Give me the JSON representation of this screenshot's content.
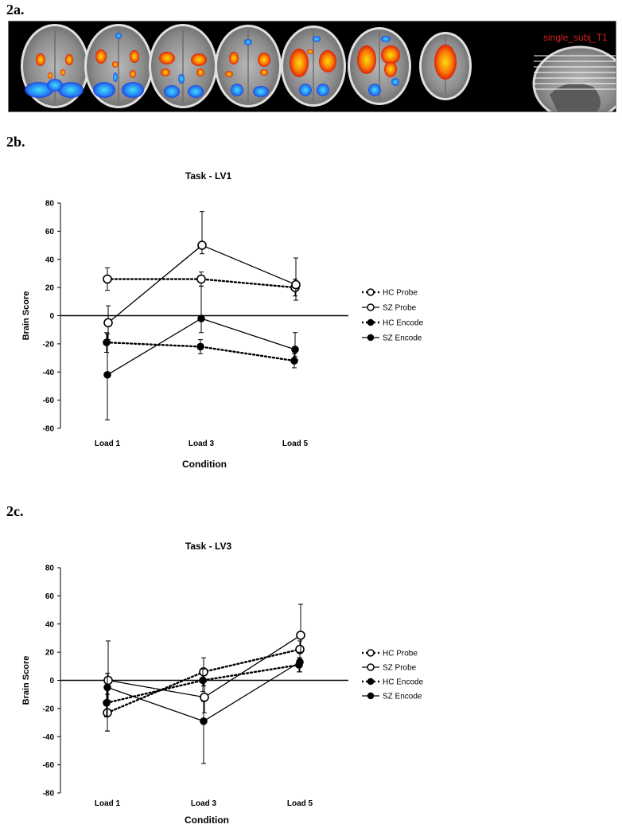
{
  "panels": {
    "a_label": "2a.",
    "b_label": "2b.",
    "c_label": "2c."
  },
  "brain_strip": {
    "overlay_label": "single_subj_T1",
    "colors": {
      "positive": "#ff3b00",
      "positive_peak": "#ffe000",
      "negative": "#1e5bff",
      "negative_peak": "#39e6ff",
      "background": "#000000",
      "label": "#d02020"
    }
  },
  "chart_data": [
    {
      "type": "line",
      "title": "Task - LV1",
      "xlabel": "Condition",
      "ylabel": "Brain Score",
      "categories": [
        "Load 1",
        "Load 3",
        "Load 5"
      ],
      "ylim": [
        -80,
        80
      ],
      "yticks": [
        "80",
        "60",
        "40",
        "20",
        "0",
        "-20",
        "-40",
        "-60",
        "-80"
      ],
      "grid": false,
      "legend_position": "right",
      "series": [
        {
          "name": "HC Probe",
          "marker": "open",
          "style": "dotted",
          "values": [
            26,
            26,
            20
          ],
          "err_hi": [
            8,
            5,
            6
          ],
          "err_lo": [
            8,
            5,
            6
          ]
        },
        {
          "name": "SZ Probe",
          "marker": "open",
          "style": "solid",
          "values": [
            -5,
            50,
            22
          ],
          "err_hi": [
            12,
            24,
            19
          ],
          "err_lo": [
            12,
            6,
            11
          ]
        },
        {
          "name": "HC Encode",
          "marker": "filled",
          "style": "dotted",
          "values": [
            -19,
            -22,
            -32
          ],
          "err_hi": [
            7,
            5,
            5
          ],
          "err_lo": [
            7,
            5,
            5
          ]
        },
        {
          "name": "SZ Encode",
          "marker": "filled",
          "style": "solid",
          "values": [
            -42,
            -2,
            -24
          ],
          "err_hi": [
            29,
            23,
            12
          ],
          "err_lo": [
            32,
            10,
            5
          ]
        }
      ]
    },
    {
      "type": "line",
      "title": "Task - LV3",
      "xlabel": "Condition",
      "ylabel": "Brain Score",
      "categories": [
        "Load 1",
        "Load 3",
        "Load 5"
      ],
      "ylim": [
        -80,
        80
      ],
      "yticks": [
        "80",
        "60",
        "40",
        "20",
        "0",
        "-20",
        "-40",
        "-60",
        "-80"
      ],
      "grid": false,
      "legend_position": "right",
      "series": [
        {
          "name": "HC Probe",
          "marker": "open",
          "style": "dotted",
          "values": [
            -23,
            6,
            22
          ],
          "err_hi": [
            13,
            10,
            6
          ],
          "err_lo": [
            13,
            10,
            6
          ]
        },
        {
          "name": "SZ Probe",
          "marker": "open",
          "style": "solid",
          "values": [
            0,
            -12,
            32
          ],
          "err_hi": [
            28,
            11,
            22
          ],
          "err_lo": [
            14,
            11,
            12
          ]
        },
        {
          "name": "HC Encode",
          "marker": "filled",
          "style": "dotted",
          "values": [
            -16,
            0,
            11
          ],
          "err_hi": [
            10,
            8,
            5
          ],
          "err_lo": [
            10,
            8,
            5
          ]
        },
        {
          "name": "SZ Encode",
          "marker": "filled",
          "style": "solid",
          "values": [
            -5,
            -29,
            13
          ],
          "err_hi": [
            10,
            14,
            6
          ],
          "err_lo": [
            31,
            30,
            7
          ]
        }
      ]
    }
  ]
}
